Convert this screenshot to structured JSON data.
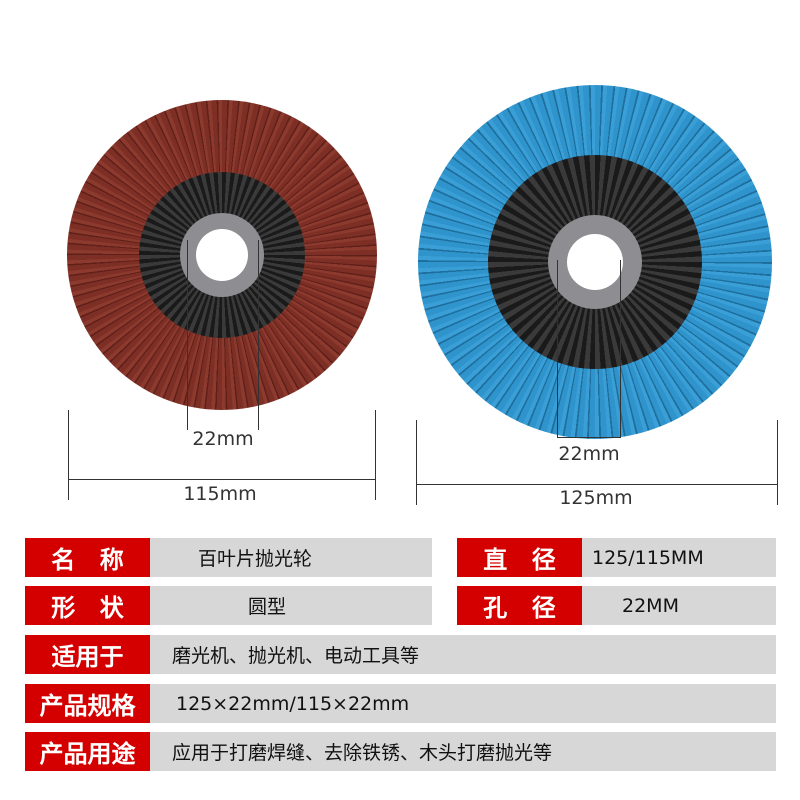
{
  "discs": [
    {
      "name": "red-flap-disc",
      "color": "#7a2e24",
      "diameter_label": "115mm",
      "hole_label": "22mm"
    },
    {
      "name": "blue-flap-disc",
      "color": "#2c8fc9",
      "diameter_label": "125mm",
      "hole_label": "22mm"
    }
  ],
  "specs": {
    "name_label": [
      "名",
      "称"
    ],
    "name_value": "百叶片抛光轮",
    "diameter_label": [
      "直",
      "径"
    ],
    "diameter_value": "125/115MM",
    "shape_label": [
      "形",
      "状"
    ],
    "shape_value": "圆型",
    "hole_label": [
      "孔",
      "径"
    ],
    "hole_value": "22MM",
    "applies_label": "适用于",
    "applies_value": "磨光机、抛光机、电动工具等",
    "spec_label": "产品规格",
    "spec_value": "125×22mm/115×22mm",
    "use_label": "产品用途",
    "use_value": "应用于打磨焊缝、去除铁锈、木头打磨抛光等"
  },
  "colors": {
    "label_bg": "#d40000",
    "value_bg": "#d7d7d7"
  }
}
